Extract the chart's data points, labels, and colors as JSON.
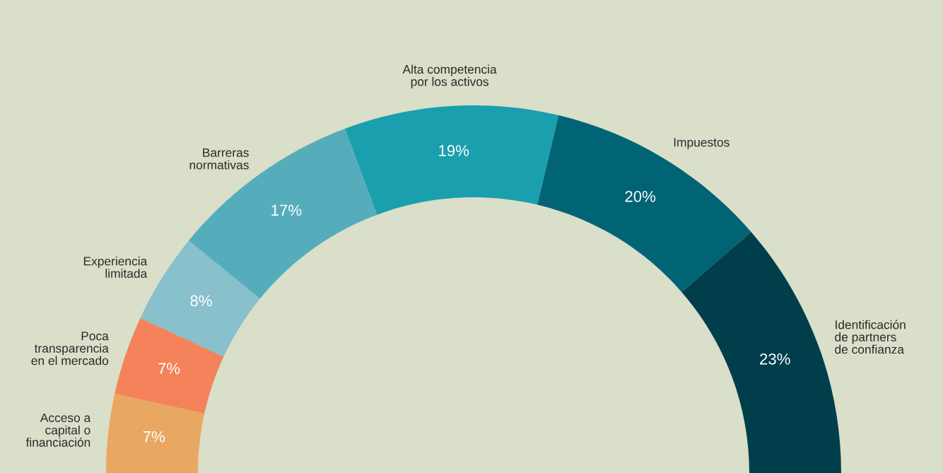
{
  "chart_data": {
    "type": "donut",
    "categories": [
      "Acceso a\ncapital o\nfinanciación",
      "Poca\ntransparencia\nen el mercado",
      "Experiencia\nlimitada",
      "Barreras\nnormativas",
      "Alta competencia\npor los activos",
      "Impuestos",
      "Identificación\nde partners\nde confianza"
    ],
    "values": [
      7,
      7,
      8,
      17,
      19,
      20,
      23
    ],
    "value_labels": [
      "7%",
      "7%",
      "8%",
      "17%",
      "19%",
      "20%",
      "23%"
    ],
    "colors": [
      "#e9a862",
      "#f4825a",
      "#88c0cc",
      "#55adbc",
      "#1a9faf",
      "#006475",
      "#003e4c"
    ]
  }
}
